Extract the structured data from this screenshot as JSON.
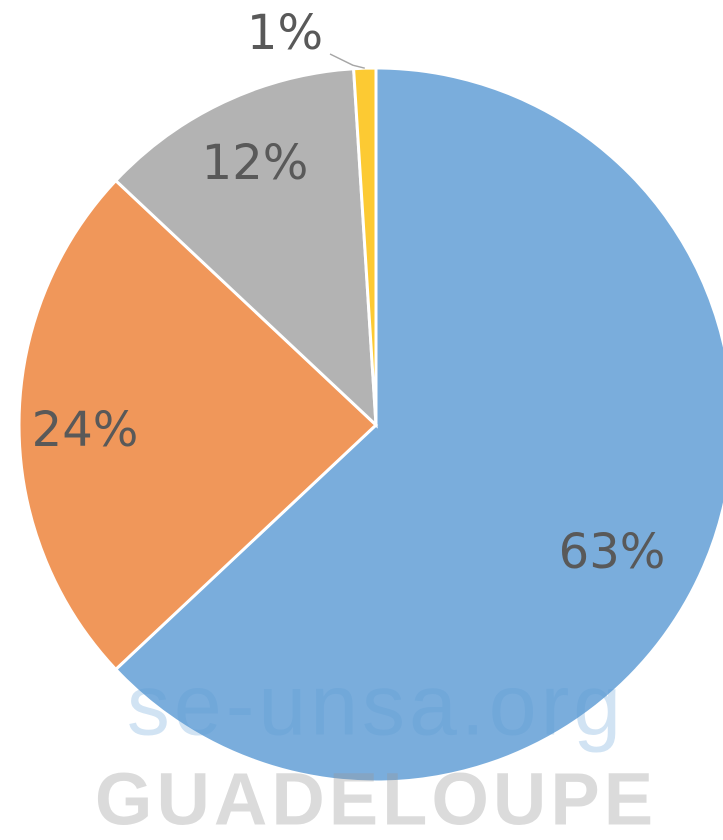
{
  "chart_data": {
    "type": "pie",
    "values": [
      63,
      24,
      12,
      1
    ],
    "value_labels": [
      "63%",
      "24%",
      "12%",
      "1%"
    ],
    "colors": [
      "#7aaddc",
      "#f0975a",
      "#b3b3b3",
      "#fcca33"
    ]
  },
  "watermark": {
    "lines": [
      "se-unsa.org",
      "GUADELOUPE"
    ]
  }
}
